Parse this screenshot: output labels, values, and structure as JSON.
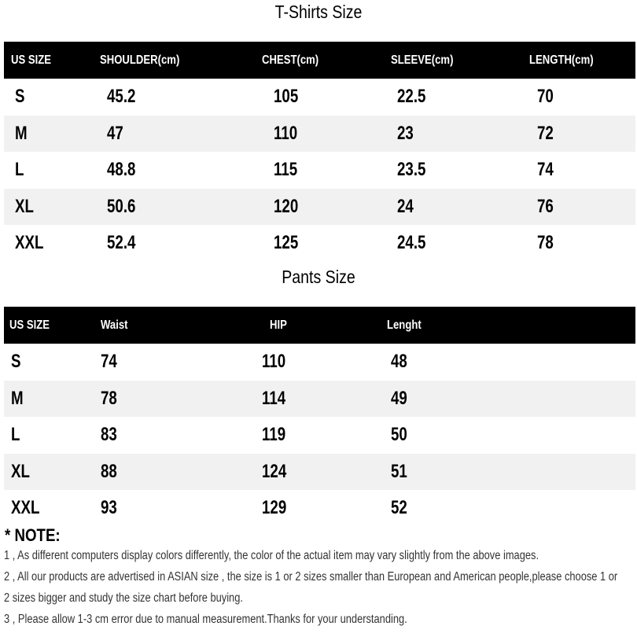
{
  "tshirts": {
    "title": "T-Shirts Size",
    "headers": [
      "US SIZE",
      "SHOULDER(cm)",
      "CHEST(cm)",
      "SLEEVE(cm)",
      "LENGTH(cm)"
    ],
    "rows": [
      [
        "S",
        "45.2",
        "105",
        "22.5",
        "70"
      ],
      [
        "M",
        "47",
        "110",
        "23",
        "72"
      ],
      [
        "L",
        "48.8",
        "115",
        "23.5",
        "74"
      ],
      [
        "XL",
        "50.6",
        "120",
        "24",
        "76"
      ],
      [
        "XXL",
        "52.4",
        "125",
        "24.5",
        "78"
      ]
    ]
  },
  "pants": {
    "title": "Pants Size",
    "headers": [
      "US SIZE",
      "Waist",
      "HIP",
      "Lenght"
    ],
    "rows": [
      [
        "S",
        "74",
        "110",
        "48"
      ],
      [
        "M",
        "78",
        "114",
        "49"
      ],
      [
        "L",
        "83",
        "119",
        "50"
      ],
      [
        "XL",
        "88",
        "124",
        "51"
      ],
      [
        "XXL",
        "93",
        "129",
        "52"
      ]
    ]
  },
  "notes": {
    "title": "* NOTE:",
    "lines": [
      "1 , As different computers display colors differently, the color of the actual item may vary slightly from the above images.",
      "2 , All our products are advertised in ASIAN size , the size is 1 or 2 sizes smaller than European and American people,please choose 1 or",
      "2 sizes bigger and study the size chart before buying.",
      "3 , Please allow 1-3 cm error due to manual measurement.Thanks for your understanding."
    ]
  }
}
